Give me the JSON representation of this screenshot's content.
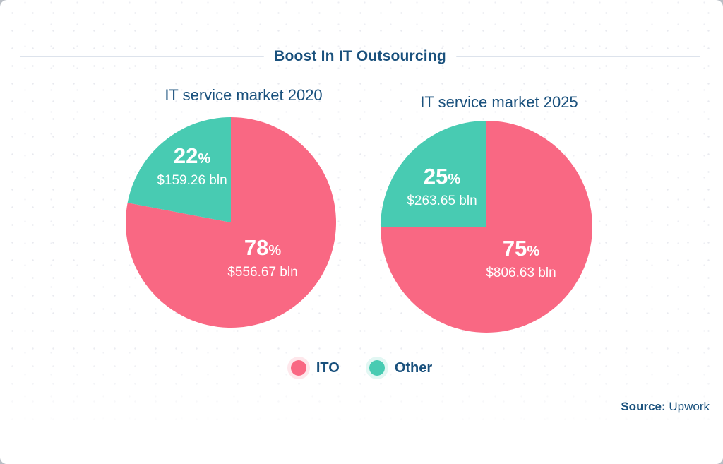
{
  "page": {
    "title": "Boost In IT Outsourcing",
    "source_label": "Source:",
    "source_value": "Upwork",
    "percent_sign": "%"
  },
  "chart_data": [
    {
      "type": "pie",
      "title": "IT service market 2020",
      "start_angle_deg": 0,
      "direction": "clockwise-from-top",
      "slices": [
        {
          "label": "ITO",
          "percent": "78",
          "value": "$556.67 bln",
          "color": "#f96883"
        },
        {
          "label": "Other",
          "percent": "22",
          "value": "$159.26 bln",
          "color": "#48cbb2"
        }
      ]
    },
    {
      "type": "pie",
      "title": "IT service market 2025",
      "start_angle_deg": 0,
      "direction": "clockwise-from-top",
      "slices": [
        {
          "label": "ITO",
          "percent": "75",
          "value": "$806.63 bln",
          "color": "#f96883"
        },
        {
          "label": "Other",
          "percent": "25",
          "value": "$263.65 bln",
          "color": "#48cbb2"
        }
      ]
    }
  ],
  "legend": [
    {
      "label": "ITO",
      "color": "#f96883"
    },
    {
      "label": "Other",
      "color": "#48cbb2"
    }
  ],
  "colors": {
    "ito_pink": "#f96883",
    "other_teal": "#48cbb2",
    "navy_text": "#1a517d",
    "divider": "#dde3ec",
    "background": "#ffffff"
  }
}
